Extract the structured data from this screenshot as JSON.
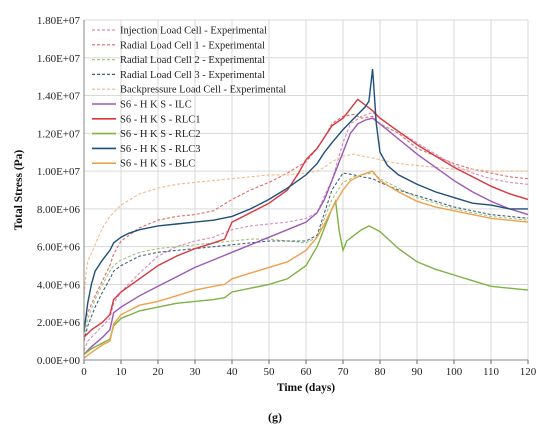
{
  "caption": "(g)",
  "chart_data": {
    "type": "line",
    "title": "",
    "xlabel": "Time (days)",
    "ylabel": "Total Stress (Pa)",
    "xlim": [
      0,
      120
    ],
    "ylim": [
      0,
      18000000
    ],
    "x_ticks": [
      0,
      10,
      20,
      30,
      40,
      50,
      60,
      70,
      80,
      90,
      100,
      110,
      120
    ],
    "y_ticks": [
      0,
      2000000,
      4000000,
      6000000,
      8000000,
      10000000,
      12000000,
      14000000,
      16000000,
      18000000
    ],
    "y_tick_labels": [
      "0.00E+00",
      "2.00E+06",
      "4.00E+06",
      "6.00E+06",
      "8.00E+06",
      "1.00E+07",
      "1.20E+07",
      "1.40E+07",
      "1.60E+07",
      "1.80E+07"
    ],
    "grid": true,
    "legend_position": "top-left",
    "series": [
      {
        "name": "Injection Load Cell - Experimental",
        "color": "#d38bbf",
        "style": "dashed",
        "x": [
          0,
          1,
          3,
          5,
          7,
          8,
          10,
          15,
          20,
          25,
          30,
          35,
          40,
          45,
          50,
          55,
          60,
          63,
          65,
          67,
          70,
          72,
          75,
          78,
          80,
          85,
          90,
          95,
          100,
          105,
          110,
          115,
          120
        ],
        "y": [
          500000,
          1000000,
          1400000,
          1800000,
          2200000,
          3000000,
          3600000,
          4600000,
          5500000,
          6000000,
          6300000,
          6500000,
          6900000,
          7100000,
          7200000,
          7300000,
          7500000,
          7800000,
          8700000,
          9500000,
          11500000,
          12500000,
          12900000,
          13100000,
          12800000,
          12100000,
          11500000,
          10900000,
          10300000,
          9900000,
          9600000,
          9400000,
          9300000
        ]
      },
      {
        "name": "Radial Load Cell 1 - Experimental",
        "color": "#e06a6a",
        "style": "dashed",
        "x": [
          0,
          1,
          3,
          5,
          7,
          8,
          10,
          15,
          20,
          25,
          30,
          35,
          40,
          45,
          50,
          55,
          60,
          63,
          65,
          67,
          70,
          73,
          75,
          78,
          80,
          85,
          90,
          95,
          100,
          105,
          110,
          115,
          120
        ],
        "y": [
          1800000,
          2500000,
          3400000,
          4200000,
          5000000,
          5600000,
          6300000,
          7000000,
          7400000,
          7600000,
          7700000,
          7900000,
          8500000,
          9000000,
          9400000,
          9900000,
          10500000,
          11200000,
          11800000,
          12500000,
          12900000,
          13000000,
          12800000,
          12900000,
          12500000,
          12000000,
          11200000,
          10800000,
          10400000,
          10100000,
          9900000,
          9700000,
          9600000
        ]
      },
      {
        "name": "Radial Load Cell 2 - Experimental",
        "color": "#a4c47a",
        "style": "dashed",
        "x": [
          0,
          1,
          3,
          5,
          7,
          8,
          10,
          15,
          20,
          25,
          30,
          35,
          40,
          45,
          50,
          55,
          60,
          63,
          65,
          67,
          70,
          73,
          75,
          78,
          80,
          85,
          90,
          95,
          100,
          105,
          110,
          115,
          120
        ],
        "y": [
          1200000,
          2200000,
          3200000,
          4000000,
          4700000,
          5000000,
          5300000,
          5700000,
          5900000,
          6000000,
          6100000,
          6200000,
          6300000,
          6400000,
          6400000,
          6300000,
          6200000,
          6500000,
          7500000,
          8500000,
          9400000,
          9700000,
          9800000,
          9900000,
          9600000,
          9100000,
          8600000,
          8300000,
          8000000,
          7800000,
          7600000,
          7500000,
          7400000
        ]
      },
      {
        "name": "Radial Load Cell 3 - Experimental",
        "color": "#3e5f7a",
        "style": "dashed",
        "x": [
          0,
          1,
          3,
          5,
          7,
          8,
          10,
          15,
          20,
          25,
          30,
          35,
          40,
          45,
          50,
          55,
          60,
          63,
          65,
          67,
          70,
          73,
          75,
          78,
          80,
          85,
          90,
          95,
          100,
          105,
          110,
          115,
          120
        ],
        "y": [
          1000000,
          1800000,
          2800000,
          3600000,
          4300000,
          4700000,
          5000000,
          5500000,
          5700000,
          5800000,
          5900000,
          6000000,
          6100000,
          6200000,
          6300000,
          6300000,
          6300000,
          6600000,
          7800000,
          9000000,
          9900000,
          9800000,
          9700000,
          9600000,
          9400000,
          9000000,
          8700000,
          8400000,
          8100000,
          7900000,
          7700000,
          7600000,
          7500000
        ]
      },
      {
        "name": "Backpressure Load Cell - Experimental",
        "color": "#f2b98a",
        "style": "dashed",
        "x": [
          0,
          0.5,
          1,
          3,
          5,
          7,
          10,
          15,
          20,
          25,
          30,
          35,
          40,
          45,
          50,
          55,
          60,
          63,
          65,
          67,
          70,
          73,
          75,
          78,
          80,
          85,
          90,
          95,
          100,
          105,
          110,
          115,
          120
        ],
        "y": [
          3200000,
          4500000,
          5200000,
          6100000,
          7000000,
          7600000,
          8200000,
          8800000,
          9100000,
          9300000,
          9400000,
          9500000,
          9600000,
          9700000,
          9800000,
          9800000,
          9900000,
          10000000,
          10200000,
          10500000,
          10800000,
          10900000,
          10800000,
          10700000,
          10600000,
          10400000,
          10300000,
          10200000,
          10100000,
          10100000,
          10000000,
          10000000,
          10000000
        ]
      },
      {
        "name": "S6 - H K S - ILC",
        "color": "#9b59b6",
        "style": "solid",
        "x": [
          0,
          2,
          5,
          7,
          8,
          10,
          15,
          20,
          25,
          30,
          35,
          40,
          45,
          50,
          55,
          60,
          63,
          65,
          67,
          70,
          72,
          74,
          76,
          78,
          80,
          85,
          90,
          95,
          100,
          105,
          110,
          115,
          120
        ],
        "y": [
          300000,
          700000,
          1200000,
          1600000,
          2500000,
          2800000,
          3400000,
          3900000,
          4400000,
          4900000,
          5300000,
          5700000,
          6100000,
          6500000,
          6900000,
          7300000,
          7800000,
          8500000,
          9500000,
          11000000,
          12000000,
          12500000,
          12700000,
          12800000,
          12500000,
          11700000,
          10900000,
          10200000,
          9500000,
          8900000,
          8400000,
          8000000,
          7700000
        ]
      },
      {
        "name": "S6 - H K S - RLC1",
        "color": "#d9363e",
        "style": "solid",
        "x": [
          0,
          2,
          5,
          7,
          8,
          10,
          15,
          20,
          25,
          30,
          35,
          38,
          40,
          45,
          50,
          55,
          58,
          60,
          63,
          65,
          67,
          70,
          72,
          74,
          76,
          78,
          80,
          85,
          90,
          95,
          100,
          105,
          110,
          115,
          120
        ],
        "y": [
          1200000,
          1600000,
          2000000,
          2400000,
          3200000,
          3600000,
          4300000,
          5000000,
          5500000,
          5900000,
          6200000,
          6400000,
          7300000,
          7800000,
          8300000,
          9000000,
          9900000,
          10600000,
          11200000,
          11800000,
          12400000,
          12800000,
          13300000,
          13800000,
          13500000,
          13200000,
          12800000,
          12100000,
          11400000,
          10800000,
          10200000,
          9700000,
          9200000,
          8800000,
          8500000
        ]
      },
      {
        "name": "S6 - H K S - RLC2",
        "color": "#7cb342",
        "style": "solid",
        "x": [
          0,
          2,
          5,
          7,
          8,
          10,
          15,
          20,
          25,
          30,
          35,
          38,
          40,
          45,
          50,
          55,
          60,
          63,
          65,
          67,
          68,
          69,
          70,
          71,
          73,
          75,
          77,
          78,
          80,
          85,
          90,
          95,
          100,
          105,
          110,
          115,
          120
        ],
        "y": [
          300000,
          600000,
          900000,
          1100000,
          1800000,
          2200000,
          2600000,
          2800000,
          3000000,
          3100000,
          3200000,
          3300000,
          3600000,
          3800000,
          4000000,
          4300000,
          5000000,
          6000000,
          7000000,
          8000000,
          8400000,
          6800000,
          5800000,
          6300000,
          6600000,
          6900000,
          7100000,
          7000000,
          6800000,
          5900000,
          5200000,
          4800000,
          4500000,
          4200000,
          3900000,
          3800000,
          3700000
        ]
      },
      {
        "name": "S6 - H K S - RLC3",
        "color": "#1f4e79",
        "style": "solid",
        "x": [
          0,
          1,
          2,
          3,
          5,
          7,
          8,
          10,
          12,
          15,
          20,
          25,
          30,
          35,
          40,
          45,
          50,
          55,
          60,
          63,
          65,
          67,
          70,
          72,
          74,
          76,
          77,
          78,
          78.5,
          79,
          80,
          82,
          85,
          90,
          95,
          100,
          105,
          110,
          115,
          120
        ],
        "y": [
          1500000,
          3000000,
          4000000,
          4700000,
          5300000,
          5800000,
          6200000,
          6500000,
          6700000,
          6900000,
          7100000,
          7200000,
          7300000,
          7400000,
          7600000,
          8000000,
          8500000,
          9100000,
          9800000,
          10400000,
          11000000,
          11500000,
          12200000,
          12600000,
          13000000,
          13400000,
          13700000,
          15400000,
          14000000,
          12500000,
          11000000,
          10300000,
          9800000,
          9300000,
          8900000,
          8600000,
          8300000,
          8200000,
          8000000,
          8000000
        ]
      },
      {
        "name": "S6 - H K S - BLC",
        "color": "#f0a04b",
        "style": "solid",
        "x": [
          0,
          2,
          5,
          7,
          8,
          10,
          15,
          20,
          25,
          30,
          35,
          38,
          40,
          45,
          50,
          55,
          60,
          63,
          65,
          67,
          70,
          72,
          75,
          78,
          80,
          85,
          90,
          95,
          100,
          105,
          110,
          115,
          120
        ],
        "y": [
          100000,
          400000,
          800000,
          1000000,
          1900000,
          2400000,
          2900000,
          3100000,
          3400000,
          3700000,
          3900000,
          4000000,
          4300000,
          4600000,
          4900000,
          5200000,
          5800000,
          6500000,
          7200000,
          8000000,
          9000000,
          9500000,
          9800000,
          10000000,
          9500000,
          8900000,
          8400000,
          8100000,
          7900000,
          7700000,
          7500000,
          7400000,
          7300000
        ]
      }
    ]
  }
}
